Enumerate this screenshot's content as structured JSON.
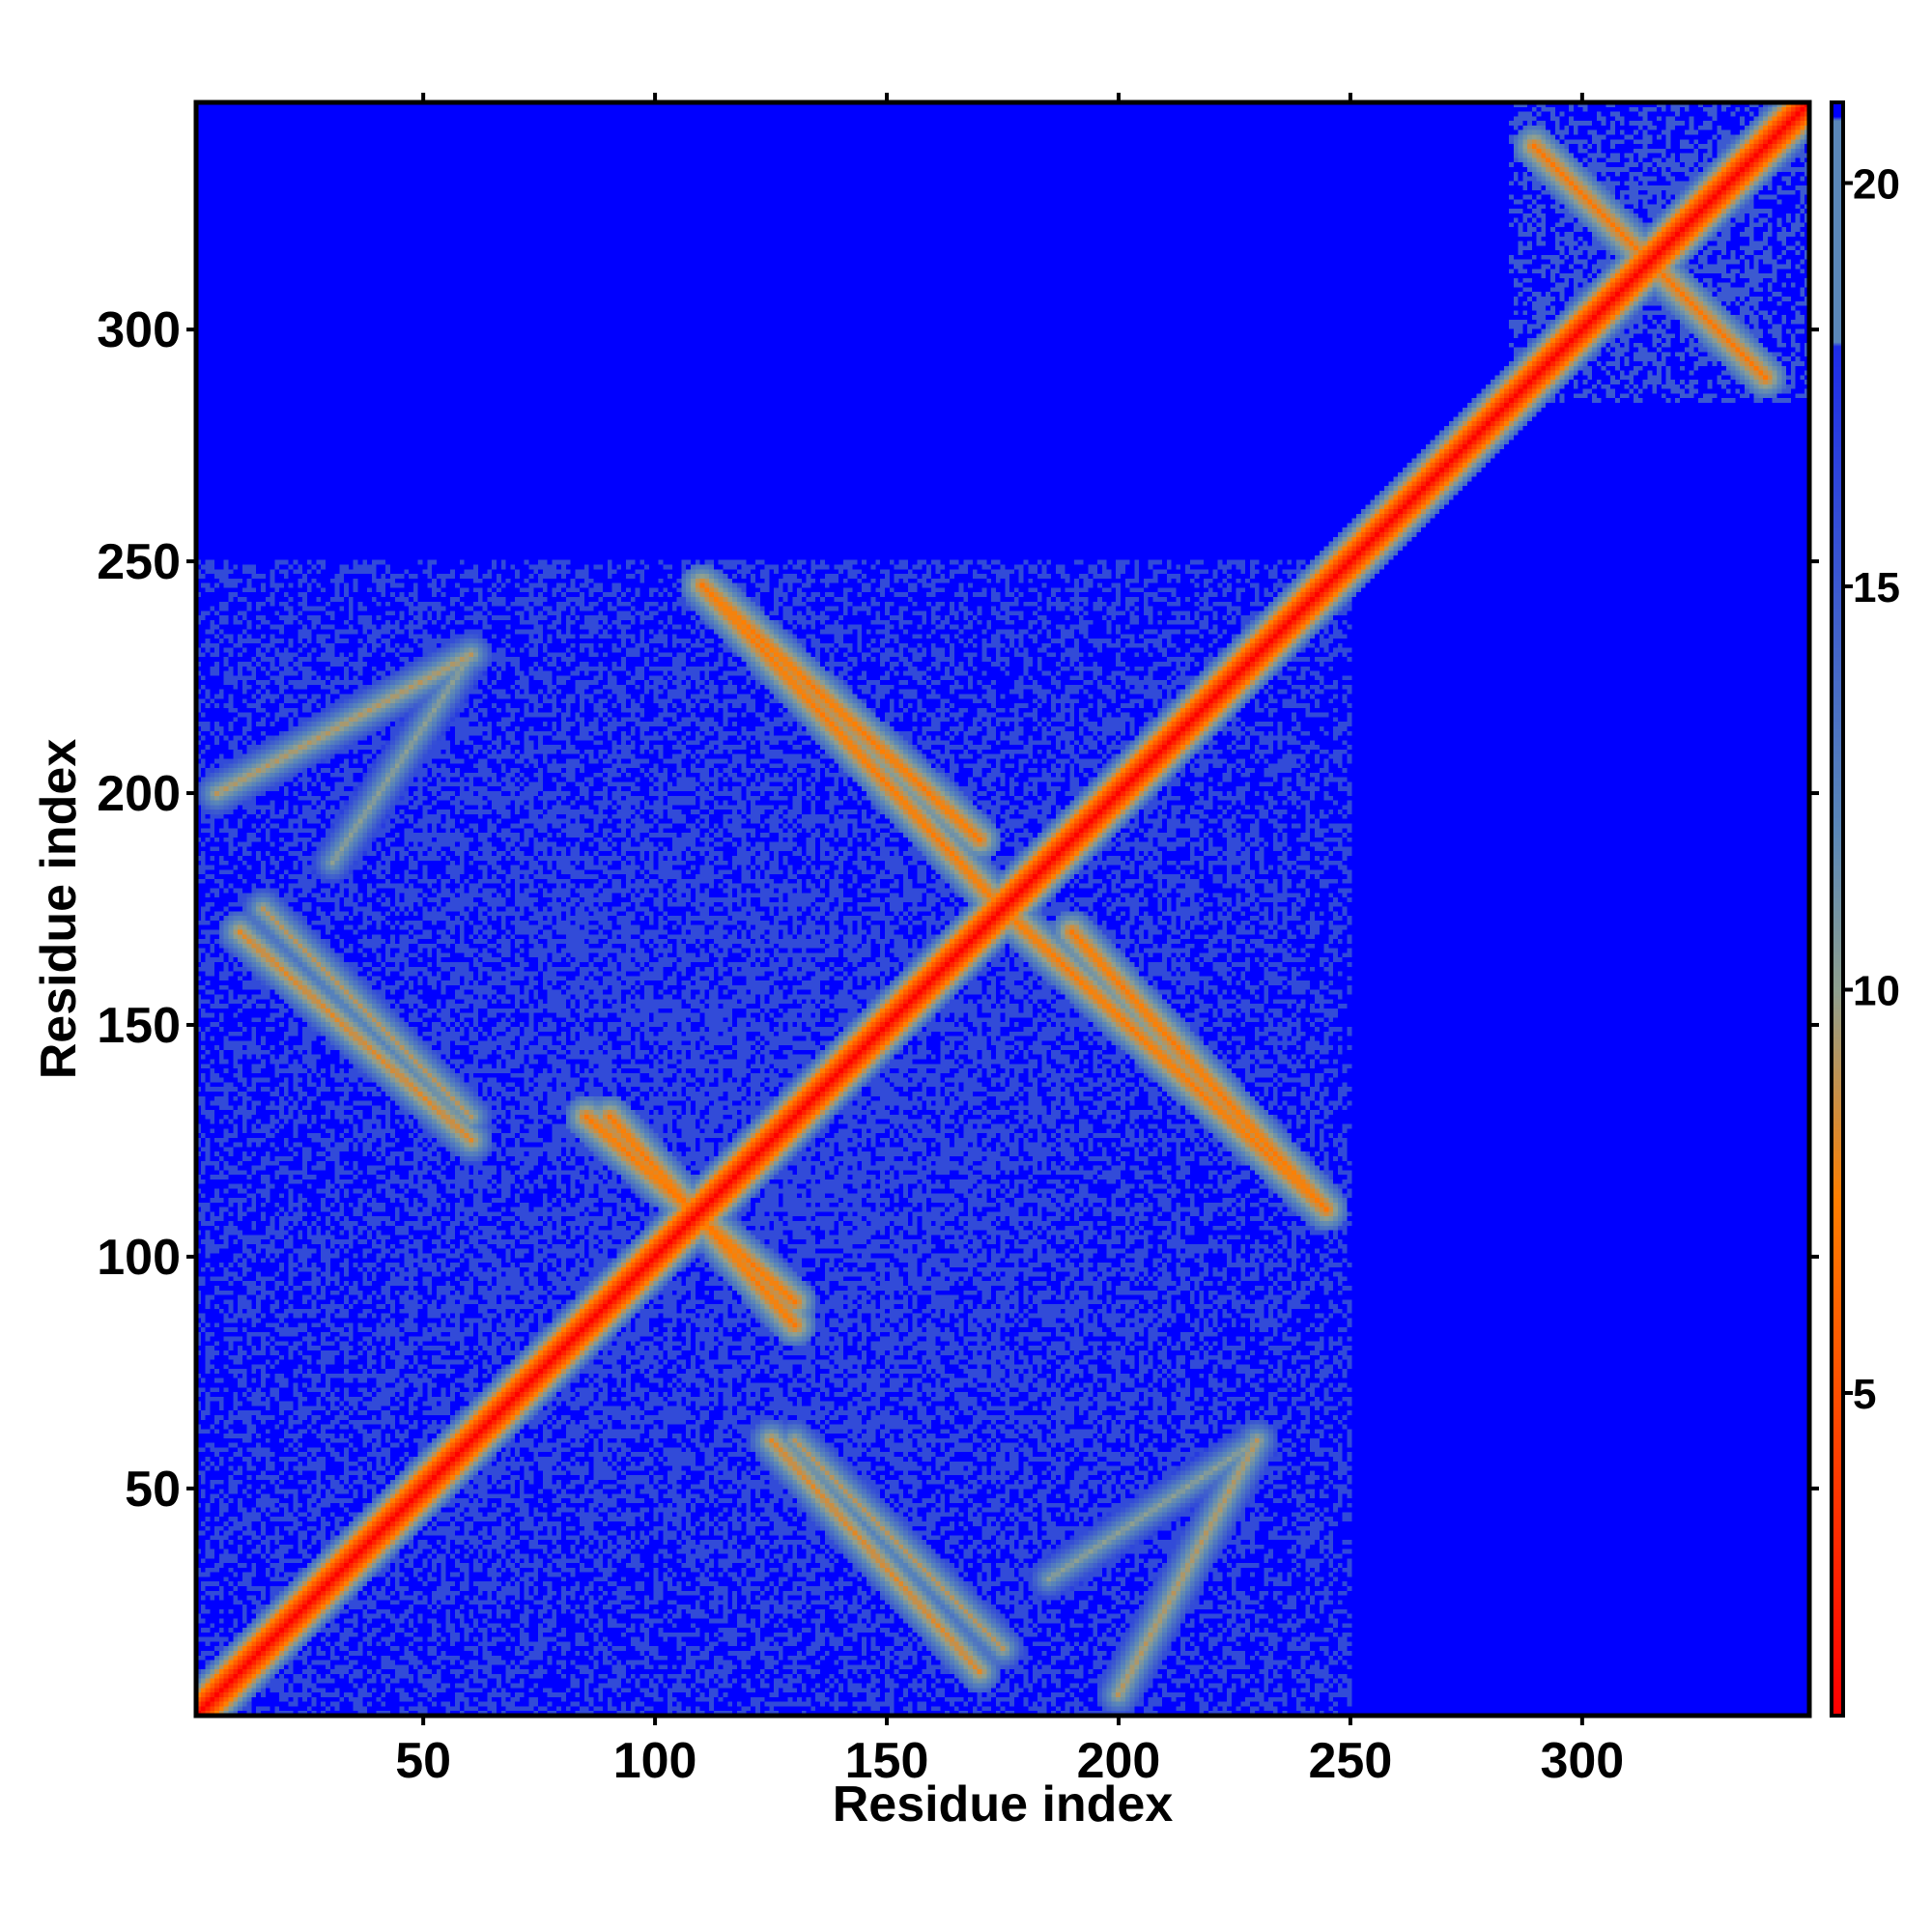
{
  "chart_data": {
    "type": "heatmap",
    "title": "",
    "xlabel": "Residue index",
    "ylabel": "Residue index",
    "xlim": [
      1,
      349
    ],
    "ylim": [
      1,
      349
    ],
    "x_ticks": [
      50,
      100,
      150,
      200,
      250,
      300
    ],
    "y_ticks": [
      50,
      100,
      150,
      200,
      250,
      300
    ],
    "colorbar": {
      "ticks": [
        5,
        10,
        15,
        20
      ],
      "range": [
        1,
        21
      ],
      "colors": [
        "#ff0000",
        "#ff7f00",
        "#8fa090",
        "#5a87b8",
        "#0000ff"
      ]
    },
    "matrix": {
      "symmetric": true,
      "diagonal_value": 1,
      "background_value": 21,
      "domains": [
        {
          "from": 1,
          "to": 250,
          "value": 16
        },
        {
          "from": 285,
          "to": 349,
          "value": 15
        }
      ],
      "contact_stripes": [
        {
          "i_from": 5,
          "i_to": 60,
          "j_from": 200,
          "j_to": 230,
          "value": 9
        },
        {
          "i_from": 10,
          "i_to": 60,
          "j_from": 170,
          "j_to": 125,
          "value": 8
        },
        {
          "i_from": 85,
          "i_to": 130,
          "j_from": 130,
          "j_to": 90,
          "value": 7
        },
        {
          "i_from": 110,
          "i_to": 170,
          "j_from": 245,
          "j_to": 190,
          "value": 7
        },
        {
          "i_from": 175,
          "i_to": 245,
          "j_from": 175,
          "j_to": 110,
          "value": 7
        },
        {
          "i_from": 130,
          "i_to": 175,
          "j_from": 60,
          "j_to": 15,
          "value": 9
        },
        {
          "i_from": 185,
          "i_to": 230,
          "j_from": 30,
          "j_to": 60,
          "value": 10
        },
        {
          "i_from": 290,
          "i_to": 340,
          "j_from": 340,
          "j_to": 290,
          "value": 7
        }
      ]
    }
  }
}
